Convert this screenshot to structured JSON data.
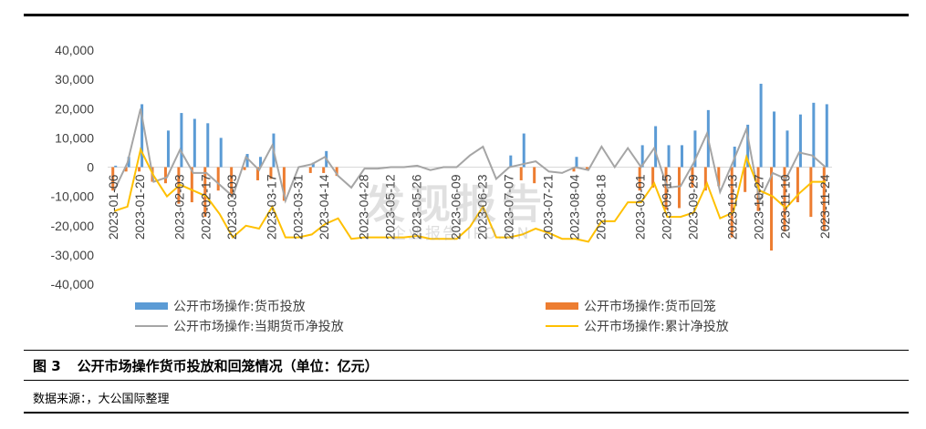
{
  "caption": {
    "figure_no": "图 3",
    "title": "公开市场操作货币投放和回笼情况（单位：亿元）"
  },
  "source_note": "数据来源：，大公国际整理",
  "watermark": {
    "main": "发现报告",
    "sub": "企业报告 IPO.CN"
  },
  "colors": {
    "bar_invest": "#5b9bd5",
    "bar_withdraw": "#ed7d31",
    "line_net": "#a5a5a5",
    "line_cum": "#ffc000",
    "axis": "#d9d9d9"
  },
  "chart_data": {
    "type": "bar",
    "ylim": [
      -40000,
      40000
    ],
    "yticks": [
      "40,000",
      "30,000",
      "20,000",
      "10,000",
      "0",
      "-10,000",
      "-20,000",
      "-30,000",
      "-40,000"
    ],
    "ytick_values": [
      40000,
      30000,
      20000,
      10000,
      0,
      -10000,
      -20000,
      -30000,
      -40000
    ],
    "xtick_labels": [
      "2023-01-06",
      "2023-01-20",
      "2023-02-03",
      "2023-02-17",
      "2023-03-03",
      "2023-03-17",
      "2023-03-31",
      "2023-04-14",
      "2023-04-28",
      "2023-05-12",
      "2023-05-26",
      "2023-06-09",
      "2023-06-23",
      "2023-07-07",
      "2023-07-21",
      "2023-08-04",
      "2023-08-18",
      "2023-09-01",
      "2023-09-15",
      "2023-09-29",
      "2023-10-13",
      "2023-10-27",
      "2023-11-10",
      "2023-11-24"
    ],
    "legend": [
      {
        "name": "公开市场操作:货币投放",
        "kind": "bar"
      },
      {
        "name": "公开市场操作:货币回笼",
        "kind": "bar"
      },
      {
        "name": "公开市场操作:当期货币净投放",
        "kind": "line"
      },
      {
        "name": "公开市场操作:累计净投放",
        "kind": "line"
      }
    ],
    "series": [
      {
        "name": "公开市场操作:货币投放",
        "kind": "bar",
        "values": [
          500,
          3500,
          21500,
          0,
          12500,
          18500,
          16500,
          15000,
          10000,
          0,
          4500,
          3500,
          11500,
          0,
          0,
          1500,
          5500,
          0,
          0,
          0,
          0,
          0,
          0,
          0,
          0,
          0,
          0,
          0,
          0,
          0,
          4000,
          11500,
          0,
          0,
          0,
          3500,
          0,
          0,
          0,
          0,
          7500,
          14000,
          7500,
          7500,
          12500,
          19500,
          0,
          7000,
          14500,
          28500,
          19000,
          12500,
          18000,
          22000,
          21500
        ]
      },
      {
        "name": "公开市场操作:货币回笼",
        "kind": "bar",
        "values": [
          -8000,
          -1500,
          -1500,
          -5000,
          -5500,
          -12500,
          -12000,
          -17000,
          -8000,
          -10000,
          -1000,
          -4500,
          -4000,
          -11500,
          0,
          -2000,
          -2000,
          -3000,
          0,
          0,
          0,
          0,
          0,
          0,
          0,
          0,
          0,
          0,
          0,
          0,
          0,
          -4500,
          -5500,
          0,
          0,
          -1500,
          -1000,
          0,
          0,
          0,
          -8000,
          -7000,
          -14500,
          -14000,
          -7000,
          -8000,
          -6500,
          -24000,
          -8500,
          -15000,
          -28500,
          -22000,
          -12000,
          -17000,
          -21500
        ]
      },
      {
        "name": "公开市场操作:当期货币净投放",
        "kind": "line",
        "values": [
          -8000,
          1500,
          20000,
          -5000,
          -3500,
          6000,
          -2000,
          -2000,
          -6000,
          -10000,
          3500,
          -1000,
          7500,
          -11500,
          0,
          1000,
          3500,
          -3000,
          -7000,
          -500,
          -500,
          0,
          0,
          500,
          -1000,
          0,
          0,
          4000,
          7000,
          -4000,
          0,
          1000,
          2000,
          -1500,
          -2000,
          0,
          -1000,
          7000,
          0,
          6500,
          0,
          6500,
          -7000,
          -6500,
          1500,
          11500,
          -8500,
          2000,
          13000,
          -11500,
          -2000,
          -4000,
          5000,
          4000,
          0
        ]
      },
      {
        "name": "公开市场操作:累计净投放",
        "kind": "line",
        "values": [
          -15000,
          -13500,
          6000,
          -3000,
          -10000,
          -6000,
          -8000,
          -10000,
          -16000,
          -24000,
          -20000,
          -21000,
          -13500,
          -24000,
          -24000,
          -23000,
          -19500,
          -17500,
          -24500,
          -24000,
          -24000,
          -24000,
          -24000,
          -23500,
          -24500,
          -24500,
          -24500,
          -20500,
          -13500,
          -24000,
          -24000,
          -23000,
          -21000,
          -22500,
          -24500,
          -24500,
          -25500,
          -18500,
          -18500,
          -12000,
          -12000,
          -5500,
          -17000,
          -17000,
          -15500,
          -5500,
          -17500,
          -15500,
          3500,
          -8000,
          -10000,
          -14000,
          -9000,
          -5000,
          -5000
        ]
      }
    ]
  }
}
